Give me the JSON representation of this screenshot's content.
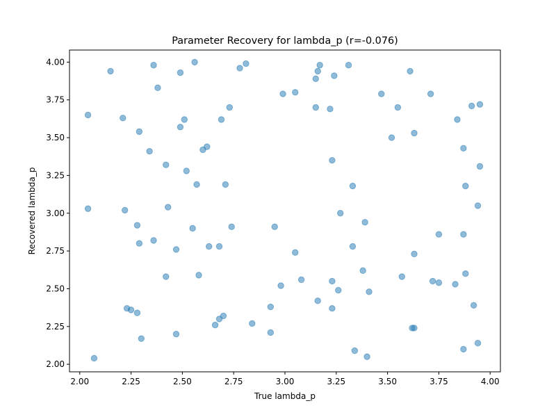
{
  "chart_data": {
    "type": "scatter",
    "title": "Parameter Recovery for lambda_p (r=-0.076)",
    "xlabel": "True lambda_p",
    "ylabel": "Recovered lambda_p",
    "xlim": [
      1.95,
      4.05
    ],
    "ylim": [
      1.95,
      4.08
    ],
    "x_ticks": [
      2.0,
      2.25,
      2.5,
      2.75,
      3.0,
      3.25,
      3.5,
      3.75,
      4.0
    ],
    "x_tick_labels": [
      "2.00",
      "2.25",
      "2.50",
      "2.75",
      "3.00",
      "3.25",
      "3.50",
      "3.75",
      "4.00"
    ],
    "y_ticks": [
      2.0,
      2.25,
      2.5,
      2.75,
      3.0,
      3.25,
      3.5,
      3.75,
      4.0
    ],
    "y_tick_labels": [
      "2.00",
      "2.25",
      "2.50",
      "2.75",
      "3.00",
      "3.25",
      "3.50",
      "3.75",
      "4.00"
    ],
    "grid": false,
    "legend": "none",
    "marker_color": "#1f77b4",
    "marker_alpha": 0.5,
    "series": [
      {
        "points": [
          [
            2.15,
            3.94
          ],
          [
            2.36,
            3.98
          ],
          [
            2.49,
            3.93
          ],
          [
            2.56,
            4.0
          ],
          [
            2.78,
            3.96
          ],
          [
            2.81,
            3.99
          ],
          [
            2.38,
            3.83
          ],
          [
            3.16,
            3.94
          ],
          [
            3.17,
            3.98
          ],
          [
            3.31,
            3.98
          ],
          [
            3.61,
            3.94
          ],
          [
            3.15,
            3.89
          ],
          [
            3.24,
            3.91
          ],
          [
            2.99,
            3.79
          ],
          [
            3.05,
            3.8
          ],
          [
            3.47,
            3.79
          ],
          [
            3.71,
            3.79
          ],
          [
            2.04,
            3.65
          ],
          [
            2.21,
            3.63
          ],
          [
            2.51,
            3.62
          ],
          [
            2.73,
            3.7
          ],
          [
            2.69,
            3.62
          ],
          [
            3.15,
            3.7
          ],
          [
            3.22,
            3.69
          ],
          [
            3.55,
            3.7
          ],
          [
            3.84,
            3.62
          ],
          [
            3.91,
            3.71
          ],
          [
            3.95,
            3.72
          ],
          [
            2.29,
            3.54
          ],
          [
            2.49,
            3.57
          ],
          [
            3.52,
            3.5
          ],
          [
            3.63,
            3.53
          ],
          [
            2.34,
            3.41
          ],
          [
            2.6,
            3.42
          ],
          [
            2.62,
            3.44
          ],
          [
            2.42,
            3.32
          ],
          [
            2.52,
            3.28
          ],
          [
            3.23,
            3.35
          ],
          [
            3.87,
            3.43
          ],
          [
            3.95,
            3.31
          ],
          [
            2.57,
            3.19
          ],
          [
            2.71,
            3.19
          ],
          [
            3.33,
            3.18
          ],
          [
            3.88,
            3.18
          ],
          [
            2.04,
            3.03
          ],
          [
            2.22,
            3.02
          ],
          [
            2.43,
            3.04
          ],
          [
            2.28,
            2.92
          ],
          [
            2.55,
            2.9
          ],
          [
            2.74,
            2.91
          ],
          [
            2.95,
            2.91
          ],
          [
            3.27,
            3.0
          ],
          [
            3.39,
            2.94
          ],
          [
            3.94,
            3.05
          ],
          [
            2.29,
            2.8
          ],
          [
            2.36,
            2.82
          ],
          [
            2.47,
            2.76
          ],
          [
            2.63,
            2.78
          ],
          [
            2.68,
            2.78
          ],
          [
            3.05,
            2.74
          ],
          [
            3.33,
            2.78
          ],
          [
            3.63,
            2.73
          ],
          [
            3.75,
            2.86
          ],
          [
            3.87,
            2.86
          ],
          [
            2.42,
            2.58
          ],
          [
            2.58,
            2.59
          ],
          [
            2.98,
            2.52
          ],
          [
            3.08,
            2.56
          ],
          [
            3.23,
            2.55
          ],
          [
            3.26,
            2.49
          ],
          [
            3.38,
            2.62
          ],
          [
            3.41,
            2.48
          ],
          [
            3.57,
            2.58
          ],
          [
            3.72,
            2.55
          ],
          [
            3.75,
            2.54
          ],
          [
            3.83,
            2.53
          ],
          [
            3.88,
            2.6
          ],
          [
            2.23,
            2.37
          ],
          [
            2.25,
            2.36
          ],
          [
            2.28,
            2.34
          ],
          [
            2.93,
            2.38
          ],
          [
            3.16,
            2.42
          ],
          [
            3.23,
            2.37
          ],
          [
            3.92,
            2.39
          ],
          [
            2.3,
            2.17
          ],
          [
            2.47,
            2.2
          ],
          [
            2.66,
            2.26
          ],
          [
            2.68,
            2.3
          ],
          [
            2.7,
            2.32
          ],
          [
            2.84,
            2.27
          ],
          [
            2.93,
            2.21
          ],
          [
            3.62,
            2.24
          ],
          [
            3.63,
            2.24
          ],
          [
            2.07,
            2.04
          ],
          [
            3.34,
            2.09
          ],
          [
            3.4,
            2.05
          ],
          [
            3.87,
            2.1
          ],
          [
            3.94,
            2.14
          ]
        ]
      }
    ]
  }
}
